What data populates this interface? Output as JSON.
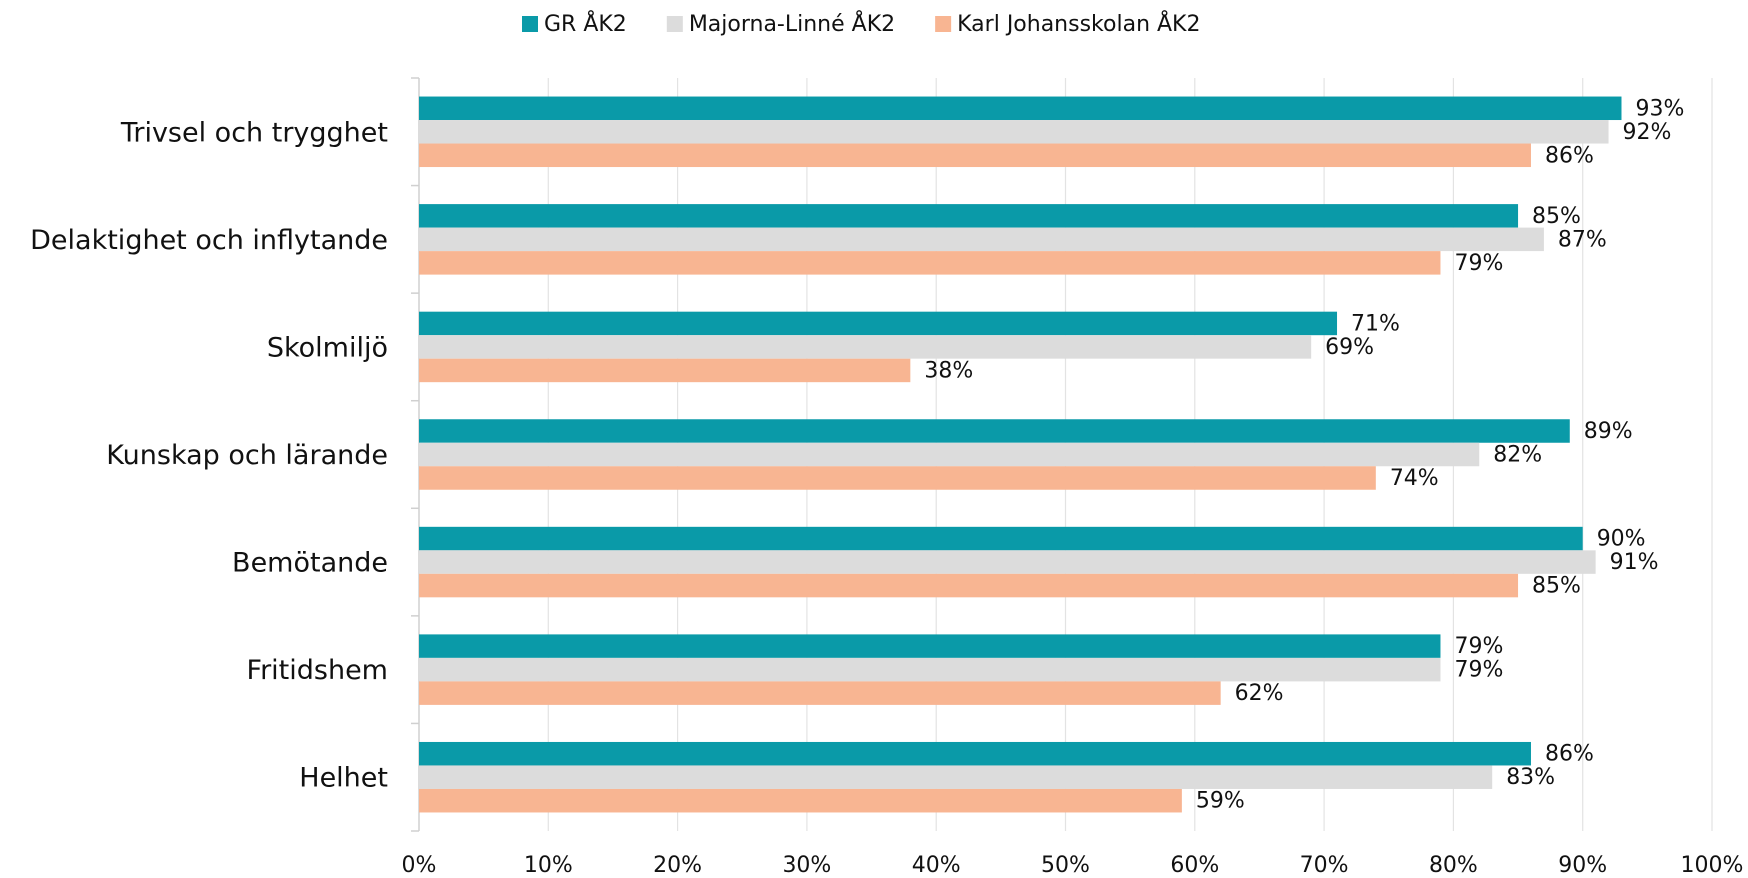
{
  "chart_data": {
    "type": "hbar",
    "categories": [
      "Trivsel och trygghet",
      "Delaktighet och inflytande",
      "Skolmiljö",
      "Kunskap och lärande",
      "Bemötande",
      "Fritidshem",
      "Helhet"
    ],
    "series": [
      {
        "name": "GR ÅK2",
        "color": "#0a9aa8",
        "values": [
          93,
          85,
          71,
          89,
          90,
          79,
          86
        ],
        "value_labels": [
          "93%",
          "85%",
          "71%",
          "89%",
          "90%",
          "79%",
          "86%"
        ]
      },
      {
        "name": "Majorna-Linné ÅK2",
        "color": "#dcdcdc",
        "values": [
          92,
          87,
          69,
          82,
          91,
          79,
          83
        ],
        "value_labels": [
          "92%",
          "87%",
          "69%",
          "82%",
          "91%",
          "79%",
          "83%"
        ]
      },
      {
        "name": "Karl Johansskolan ÅK2",
        "color": "#f8b592",
        "values": [
          86,
          79,
          38,
          74,
          85,
          62,
          59
        ],
        "value_labels": [
          "86%",
          "79%",
          "38%",
          "74%",
          "85%",
          "62%",
          "59%"
        ]
      }
    ],
    "xlim": [
      0,
      100
    ],
    "xticks": [
      {
        "value": 0,
        "label": "0%"
      },
      {
        "value": 10,
        "label": "10%"
      },
      {
        "value": 20,
        "label": "20%"
      },
      {
        "value": 30,
        "label": "30%"
      },
      {
        "value": 40,
        "label": "40%"
      },
      {
        "value": 50,
        "label": "50%"
      },
      {
        "value": 60,
        "label": "60%"
      },
      {
        "value": 70,
        "label": "70%"
      },
      {
        "value": 80,
        "label": "80%"
      },
      {
        "value": 90,
        "label": "90%"
      },
      {
        "value": 100,
        "label": "100%"
      }
    ],
    "grid": true,
    "legend": "top"
  }
}
